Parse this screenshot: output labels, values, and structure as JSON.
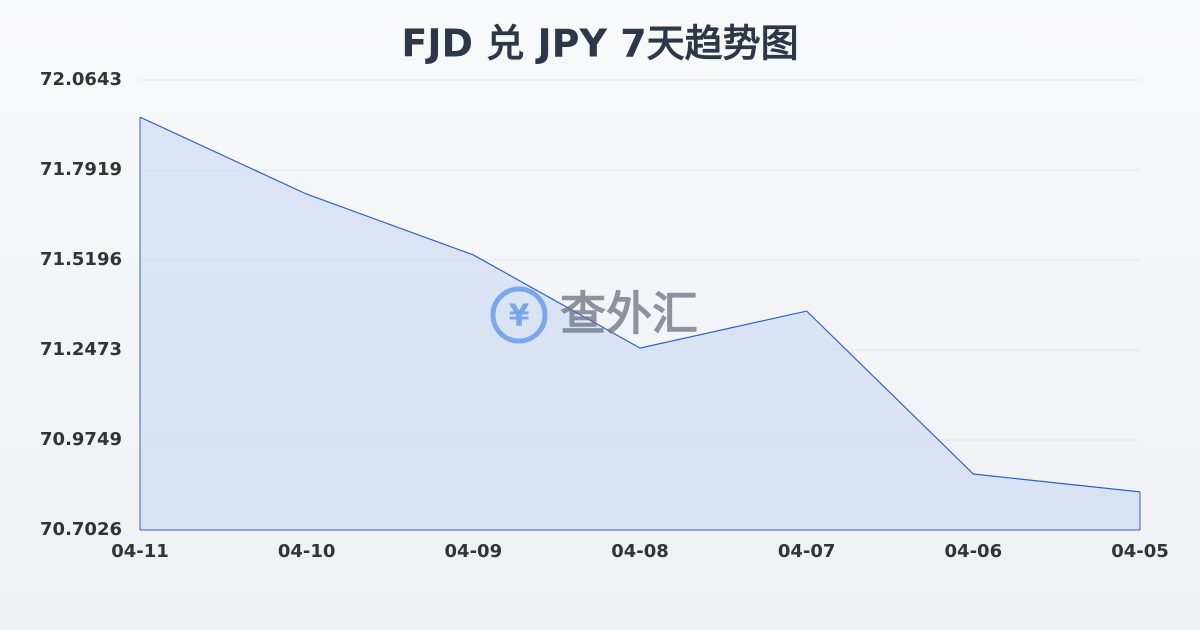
{
  "chart_data": {
    "type": "area",
    "title": "FJD 兑 JPY 7天趋势图",
    "categories": [
      "04-11",
      "04-10",
      "04-09",
      "04-08",
      "04-07",
      "04-06",
      "04-05"
    ],
    "values": [
      71.952,
      71.719,
      71.535,
      71.253,
      71.365,
      70.872,
      70.818
    ],
    "color": "#2f62c0",
    "fill": "#c9d7f2",
    "ylim": [
      70.7026,
      72.0643
    ],
    "yticks": [
      70.7026,
      70.9749,
      71.2473,
      71.5196,
      71.7919,
      72.0643
    ],
    "grid": true,
    "watermark": "查外汇"
  }
}
